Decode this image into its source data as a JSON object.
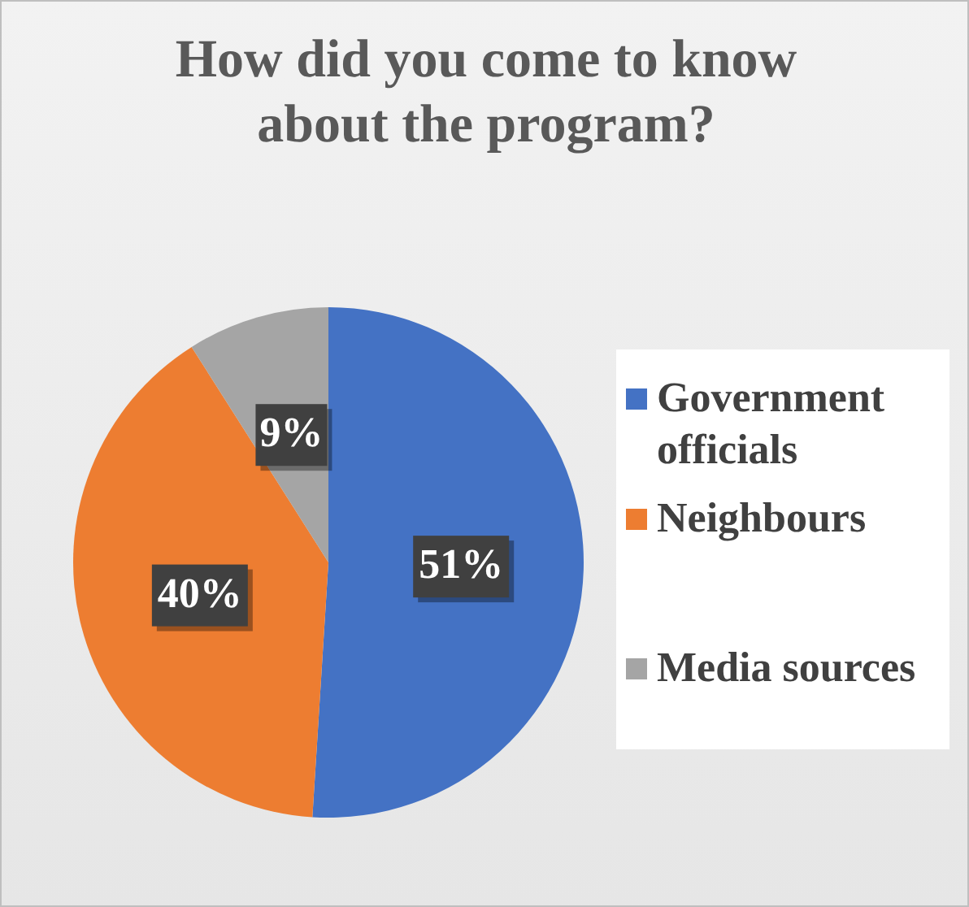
{
  "chart_data": {
    "type": "pie",
    "title": "How did you come to know about the program?",
    "categories": [
      "Government officials",
      "Neighbours",
      "Media sources"
    ],
    "values": [
      51,
      40,
      9
    ],
    "colors": [
      "#4472c4",
      "#ed7d31",
      "#a5a5a5"
    ],
    "value_labels": [
      "51%",
      "40%",
      "9%"
    ],
    "legend": "right"
  }
}
